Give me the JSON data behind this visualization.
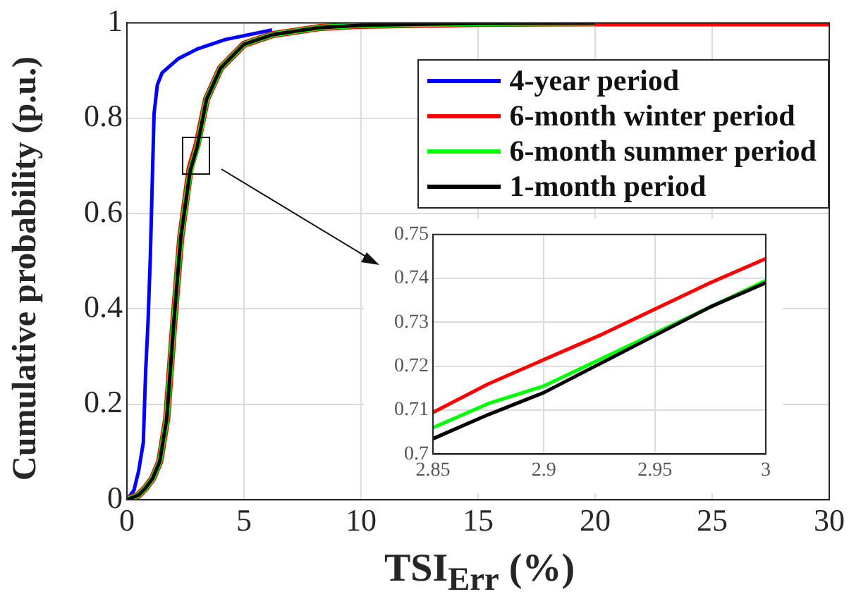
{
  "chart_data": [
    {
      "type": "line",
      "xlabel": "TSI$_{Err}$ (%)",
      "ylabel": "Cumulative probability (p.u.)",
      "xlim": [
        0,
        30
      ],
      "ylim": [
        0,
        1
      ],
      "xticks": [
        0,
        5,
        10,
        15,
        20,
        25,
        30
      ],
      "yticks": [
        0,
        0.2,
        0.4,
        0.6,
        0.8,
        1
      ],
      "grid": true,
      "legend": "top right",
      "marker": "none",
      "line_style": "solid",
      "series": [
        {
          "name": "4-year period",
          "color": "#0000ff",
          "x": [
            0,
            0.3,
            0.5,
            0.7,
            0.8,
            0.9,
            1.0,
            1.1,
            1.16,
            1.3,
            1.5,
            2.2,
            3.0,
            4.2,
            6.2
          ],
          "values": [
            0,
            0.02,
            0.06,
            0.12,
            0.27,
            0.37,
            0.51,
            0.7,
            0.81,
            0.87,
            0.895,
            0.925,
            0.945,
            0.965,
            0.985
          ]
        },
        {
          "name": "6-month winter period",
          "color": "#ff0000",
          "x": [
            0,
            0.5,
            0.8,
            1.1,
            1.4,
            1.7,
            2.0,
            2.3,
            2.7,
            3.0,
            3.4,
            4.0,
            5.0,
            6.2,
            8.2,
            10,
            15,
            20,
            30
          ],
          "values": [
            0,
            0.01,
            0.025,
            0.045,
            0.08,
            0.17,
            0.37,
            0.55,
            0.695,
            0.745,
            0.84,
            0.905,
            0.955,
            0.975,
            0.99,
            0.995,
            0.999,
            1,
            1
          ]
        },
        {
          "name": "6-month summer period",
          "color": "#00ff00",
          "x": [
            0,
            0.5,
            0.8,
            1.1,
            1.4,
            1.7,
            2.0,
            2.3,
            2.7,
            3.0,
            3.4,
            4.0,
            5.0,
            6.2,
            8.2,
            10,
            15,
            20
          ],
          "values": [
            0,
            0.01,
            0.025,
            0.045,
            0.08,
            0.17,
            0.37,
            0.55,
            0.69,
            0.74,
            0.84,
            0.905,
            0.955,
            0.975,
            0.99,
            0.995,
            0.999,
            1
          ]
        },
        {
          "name": "1-month period",
          "color": "#000000",
          "x": [
            0,
            0.5,
            0.8,
            1.1,
            1.4,
            1.7,
            2.0,
            2.3,
            2.7,
            3.0,
            3.4,
            4.0,
            5.0,
            6.2,
            8.2,
            10,
            15,
            20
          ],
          "values": [
            0,
            0.01,
            0.025,
            0.045,
            0.08,
            0.17,
            0.37,
            0.55,
            0.69,
            0.74,
            0.84,
            0.905,
            0.955,
            0.975,
            0.99,
            0.995,
            0.999,
            1
          ]
        }
      ]
    },
    {
      "type": "line",
      "xlim": [
        2.85,
        3
      ],
      "ylim": [
        0.7,
        0.75
      ],
      "xticks": [
        2.85,
        2.9,
        2.95,
        3
      ],
      "yticks": [
        0.7,
        0.71,
        0.72,
        0.73,
        0.74,
        0.75
      ],
      "grid": true,
      "marker": "none",
      "line_style": "solid",
      "series": [
        {
          "color": "#ff0000",
          "x": [
            2.85,
            2.875,
            2.9,
            2.925,
            2.95,
            2.975,
            3.0
          ],
          "values": [
            0.7095,
            0.716,
            0.7215,
            0.727,
            0.733,
            0.739,
            0.7445
          ]
        },
        {
          "color": "#00ff00",
          "x": [
            2.85,
            2.875,
            2.9,
            2.925,
            2.95,
            2.975,
            3.0
          ],
          "values": [
            0.706,
            0.7115,
            0.7155,
            0.7215,
            0.7275,
            0.7335,
            0.7395
          ]
        },
        {
          "color": "#000000",
          "x": [
            2.85,
            2.875,
            2.9,
            2.925,
            2.95,
            2.975,
            3.0
          ],
          "values": [
            0.7035,
            0.709,
            0.714,
            0.7205,
            0.727,
            0.7335,
            0.739
          ]
        }
      ]
    }
  ]
}
